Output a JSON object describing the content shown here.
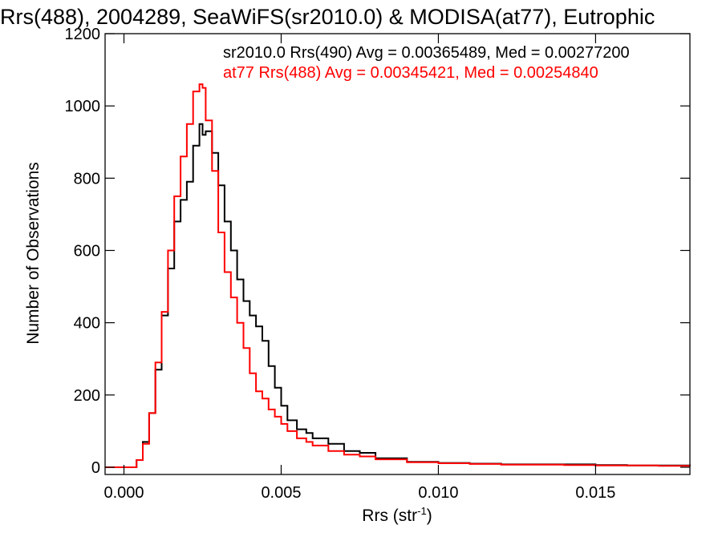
{
  "chart_data": {
    "type": "line",
    "title": "Rrs(488), 2004289, SeaWiFS(sr2010.0) & MODISA(at77), Eutrophic",
    "xlabel": {
      "text": "Rrs (str",
      "sup": "-1",
      "tail": ")"
    },
    "ylabel": "Number of Observations",
    "xlim": [
      -0.0006,
      0.018
    ],
    "ylim": [
      -20,
      1200
    ],
    "xticks": [
      0.0,
      0.005,
      0.01,
      0.015
    ],
    "xtick_labels": [
      "0.000",
      "0.005",
      "0.010",
      "0.015"
    ],
    "yticks": [
      0,
      200,
      400,
      600,
      800,
      1000,
      1200
    ],
    "ytick_labels": [
      "0",
      "200",
      "400",
      "600",
      "800",
      "1000",
      "1200"
    ],
    "legend": "top-right",
    "legend_entries": [
      "sr2010.0 Rrs(490) Avg = 0.00365489, Med = 0.00277200",
      "at77 Rrs(488) Avg = 0.00345421, Med = 0.00254840"
    ],
    "series": [
      {
        "color": "#000000",
        "x": [
          0.0,
          0.0004,
          0.0006,
          0.0008,
          0.001,
          0.0012,
          0.0014,
          0.0016,
          0.0018,
          0.002,
          0.0022,
          0.0024,
          0.0025,
          0.0026,
          0.0028,
          0.003,
          0.0032,
          0.0034,
          0.0036,
          0.0038,
          0.004,
          0.0042,
          0.0044,
          0.0046,
          0.0048,
          0.005,
          0.0052,
          0.0055,
          0.0058,
          0.006,
          0.0065,
          0.007,
          0.0075,
          0.008,
          0.009,
          0.01,
          0.011,
          0.012,
          0.013,
          0.014,
          0.015,
          0.016,
          0.017,
          0.018
        ],
        "y": [
          0,
          20,
          70,
          150,
          270,
          420,
          550,
          680,
          740,
          790,
          890,
          950,
          920,
          930,
          870,
          780,
          680,
          600,
          520,
          460,
          420,
          390,
          350,
          280,
          220,
          170,
          130,
          105,
          95,
          80,
          65,
          45,
          40,
          25,
          15,
          12,
          10,
          8,
          8,
          8,
          6,
          5,
          5,
          4
        ]
      },
      {
        "color": "#ff0000",
        "x": [
          0.0,
          0.0004,
          0.0006,
          0.0008,
          0.001,
          0.0012,
          0.0014,
          0.0016,
          0.0018,
          0.002,
          0.0022,
          0.0024,
          0.0025,
          0.0026,
          0.0028,
          0.003,
          0.0032,
          0.0034,
          0.0036,
          0.0038,
          0.004,
          0.0042,
          0.0044,
          0.0046,
          0.0048,
          0.005,
          0.0052,
          0.0055,
          0.0058,
          0.006,
          0.0065,
          0.007,
          0.0075,
          0.008,
          0.009,
          0.01,
          0.011,
          0.012,
          0.013,
          0.014,
          0.015,
          0.016,
          0.017,
          0.018
        ],
        "y": [
          0,
          20,
          65,
          150,
          290,
          430,
          600,
          750,
          860,
          950,
          1040,
          1060,
          1050,
          960,
          820,
          650,
          540,
          470,
          400,
          330,
          260,
          210,
          190,
          160,
          140,
          120,
          100,
          80,
          70,
          60,
          45,
          35,
          30,
          22,
          14,
          11,
          9,
          7,
          7,
          6,
          5,
          5,
          4,
          3
        ]
      }
    ]
  }
}
